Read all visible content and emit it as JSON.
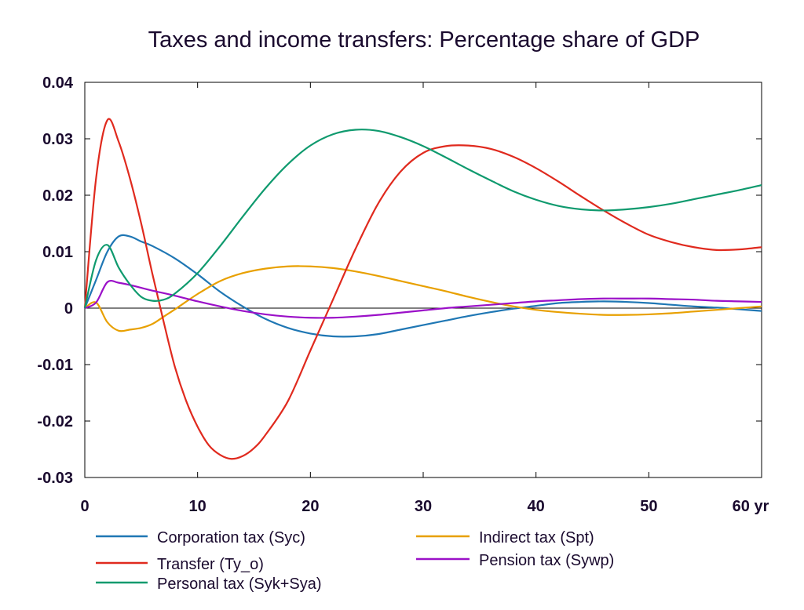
{
  "chart_data": {
    "type": "line",
    "title": "Taxes and income transfers: Percentage share of GDP",
    "xlim": [
      0,
      60
    ],
    "ylim": [
      -0.03,
      0.04
    ],
    "x_ticks": [
      0,
      10,
      20,
      30,
      40,
      50,
      60
    ],
    "x_tick_labels": [
      "0",
      "10",
      "20",
      "30",
      "40",
      "50",
      "60 yr"
    ],
    "y_ticks": [
      0.04,
      0.03,
      0.02,
      0.01,
      0,
      -0.01,
      -0.02,
      -0.03
    ],
    "y_tick_labels": [
      "0.04",
      "0.03",
      "0.02",
      "0.01",
      "0",
      "-0.01",
      "-0.02",
      "-0.03"
    ],
    "grid": false,
    "zero_line": true,
    "legend_position": "bottom",
    "series": [
      {
        "name": "Corporation tax (Syc)",
        "color": "#1f77b4",
        "x": [
          0,
          1,
          2,
          3,
          4,
          5,
          6,
          8,
          10,
          12,
          14,
          16,
          18,
          20,
          22,
          24,
          26,
          28,
          30,
          32,
          34,
          36,
          38,
          40,
          42,
          44,
          46,
          48,
          50,
          52,
          54,
          56,
          58,
          60
        ],
        "y": [
          0,
          0.005,
          0.01,
          0.0127,
          0.0127,
          0.0118,
          0.011,
          0.0088,
          0.006,
          0.0029,
          0.0003,
          -0.0019,
          -0.0035,
          -0.0045,
          -0.005,
          -0.005,
          -0.0046,
          -0.0038,
          -0.003,
          -0.0022,
          -0.0014,
          -0.0007,
          -0.0001,
          0.0004,
          0.0009,
          0.0011,
          0.0012,
          0.0011,
          0.0009,
          0.0006,
          0.0003,
          0.0001,
          -0.0002,
          -0.0005
        ]
      },
      {
        "name": "Indirect tax (Spt)",
        "color": "#e8a000",
        "x": [
          0,
          1,
          2,
          3,
          4,
          5,
          6,
          7,
          8,
          10,
          12,
          14,
          16,
          18,
          20,
          22,
          24,
          26,
          28,
          30,
          32,
          34,
          36,
          38,
          40,
          42,
          44,
          46,
          48,
          50,
          52,
          54,
          56,
          58,
          60
        ],
        "y": [
          0,
          0.001,
          -0.0025,
          -0.004,
          -0.0038,
          -0.0035,
          -0.0028,
          -0.0015,
          -0.0002,
          0.0025,
          0.0048,
          0.0062,
          0.007,
          0.0074,
          0.0074,
          0.0071,
          0.0065,
          0.0057,
          0.0048,
          0.0039,
          0.003,
          0.002,
          0.0011,
          0.0003,
          -0.0003,
          -0.0007,
          -0.001,
          -0.0012,
          -0.0012,
          -0.0011,
          -0.0009,
          -0.0006,
          -0.0003,
          0.0,
          0.0003
        ]
      },
      {
        "name": "Transfer (Ty_o)",
        "color": "#e02a1e",
        "x": [
          0,
          1,
          2,
          3,
          4,
          5,
          6,
          7,
          8,
          9,
          10,
          11,
          12,
          13,
          14,
          15,
          16,
          18,
          20,
          22,
          24,
          26,
          28,
          30,
          32,
          34,
          36,
          38,
          40,
          42,
          44,
          46,
          48,
          50,
          52,
          54,
          56,
          58,
          60
        ],
        "y": [
          0,
          0.023,
          0.0333,
          0.0295,
          0.023,
          0.015,
          0.006,
          -0.0025,
          -0.0105,
          -0.0165,
          -0.021,
          -0.0243,
          -0.026,
          -0.0267,
          -0.0262,
          -0.0248,
          -0.0225,
          -0.0165,
          -0.0075,
          0.0015,
          0.0105,
          0.0185,
          0.0242,
          0.0275,
          0.0287,
          0.0288,
          0.0282,
          0.0268,
          0.0248,
          0.0224,
          0.0198,
          0.0173,
          0.015,
          0.013,
          0.0117,
          0.0108,
          0.0103,
          0.0104,
          0.0108
        ]
      },
      {
        "name": "Pension tax (Sywp)",
        "color": "#9b10c8",
        "x": [
          0,
          1,
          2,
          3,
          4,
          5,
          6,
          8,
          10,
          12,
          14,
          16,
          18,
          20,
          22,
          24,
          26,
          28,
          30,
          32,
          34,
          36,
          38,
          40,
          42,
          44,
          46,
          48,
          50,
          52,
          54,
          56,
          58,
          60
        ],
        "y": [
          0,
          0.001,
          0.0046,
          0.0045,
          0.0041,
          0.0036,
          0.0031,
          0.0022,
          0.0012,
          0.0003,
          -0.0005,
          -0.0011,
          -0.0015,
          -0.0017,
          -0.0017,
          -0.0015,
          -0.0012,
          -0.0008,
          -0.0004,
          0.0,
          0.0003,
          0.0006,
          0.0009,
          0.0012,
          0.0014,
          0.0016,
          0.0017,
          0.0017,
          0.0017,
          0.0016,
          0.0015,
          0.0013,
          0.0012,
          0.0011
        ]
      },
      {
        "name": "Personal tax (Syk+Sya)",
        "color": "#0f9a6e",
        "x": [
          0,
          1,
          2,
          3,
          4,
          5,
          6,
          7,
          8,
          10,
          12,
          14,
          16,
          18,
          20,
          22,
          24,
          26,
          28,
          30,
          32,
          34,
          36,
          38,
          40,
          42,
          44,
          46,
          48,
          50,
          52,
          54,
          56,
          58,
          60
        ],
        "y": [
          0,
          0.0085,
          0.0112,
          0.0072,
          0.0042,
          0.002,
          0.0013,
          0.0015,
          0.0026,
          0.0062,
          0.011,
          0.0162,
          0.0212,
          0.0255,
          0.0288,
          0.0308,
          0.0316,
          0.0314,
          0.0303,
          0.0287,
          0.0267,
          0.0246,
          0.0226,
          0.0207,
          0.0192,
          0.0181,
          0.0175,
          0.0173,
          0.0175,
          0.0179,
          0.0185,
          0.0193,
          0.0201,
          0.0209,
          0.0218
        ]
      }
    ],
    "legend_columns": [
      [
        "Corporation tax (Syc)",
        "Transfer (Ty_o)",
        "Personal tax (Syk+Sya)"
      ],
      [
        "Indirect tax (Spt)",
        "Pension tax (Sywp)"
      ]
    ]
  }
}
